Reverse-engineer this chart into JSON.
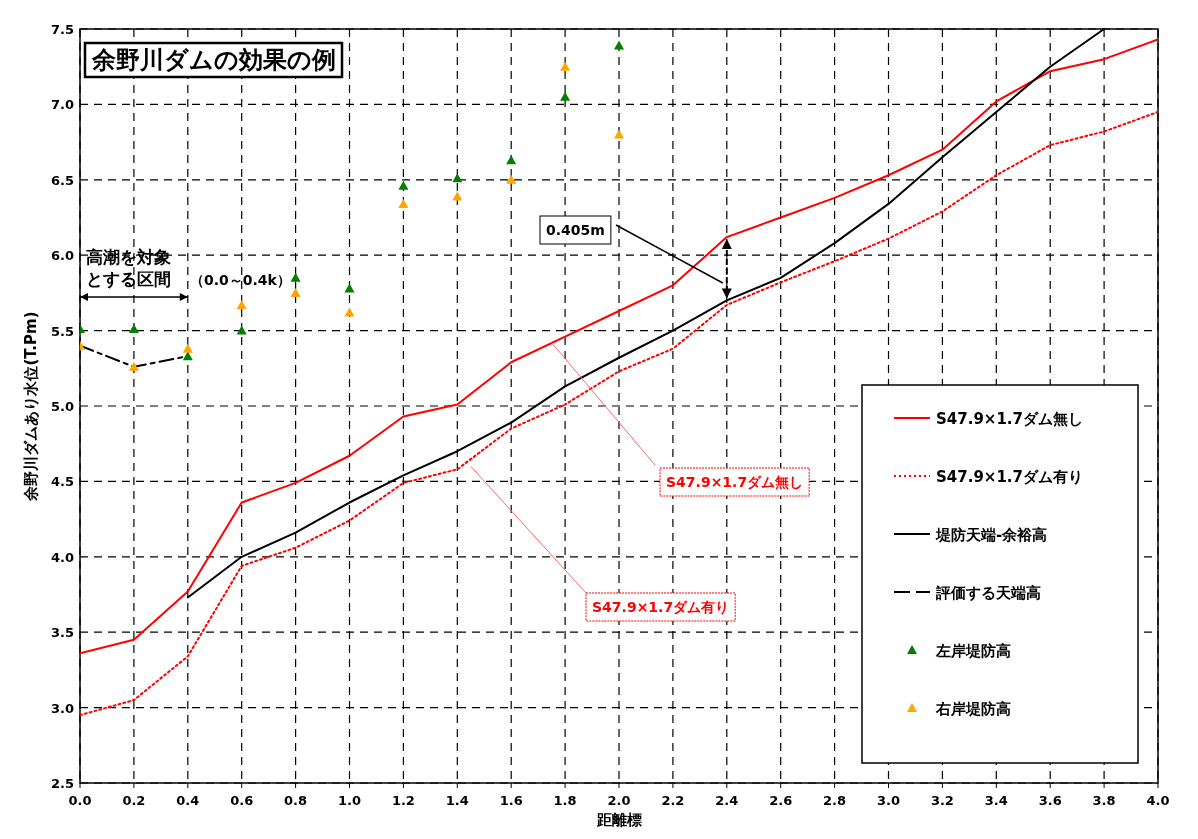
{
  "chart_data": {
    "type": "line",
    "title": "余野川ダムの効果の例",
    "xlabel": "距離標",
    "ylabel": "余野川ダムあり水位(T.Pm)",
    "xlim": [
      0,
      4
    ],
    "ylim": [
      2.5,
      7.5
    ],
    "xticks": [
      {
        "value": 0,
        "label": "0.0"
      },
      {
        "value": 0.2,
        "label": "0.2"
      },
      {
        "value": 0.4,
        "label": "0.4"
      },
      {
        "value": 0.6,
        "label": "0.6"
      },
      {
        "value": 0.8,
        "label": "0.8"
      },
      {
        "value": 1,
        "label": "1.0"
      },
      {
        "value": 1.2,
        "label": "1.2"
      },
      {
        "value": 1.4,
        "label": "1.4"
      },
      {
        "value": 1.6,
        "label": "1.6"
      },
      {
        "value": 1.8,
        "label": "1.8"
      },
      {
        "value": 2,
        "label": "2.0"
      },
      {
        "value": 2.2,
        "label": "2.2"
      },
      {
        "value": 2.4,
        "label": "2.4"
      },
      {
        "value": 2.6,
        "label": "2.6"
      },
      {
        "value": 2.8,
        "label": "2.8"
      },
      {
        "value": 3,
        "label": "3.0"
      },
      {
        "value": 3.2,
        "label": "3.2"
      },
      {
        "value": 3.4,
        "label": "3.4"
      },
      {
        "value": 3.6,
        "label": "3.6"
      },
      {
        "value": 3.8,
        "label": "3.8"
      },
      {
        "value": 4,
        "label": "4.0"
      }
    ],
    "yticks": [
      2.5,
      {
        "value": 3,
        "label": "3.0"
      },
      3.5,
      {
        "value": 4,
        "label": "4.0"
      },
      4.5,
      {
        "value": 5,
        "label": "5.0"
      },
      5.5,
      {
        "value": 6,
        "label": "6.0"
      },
      6.5,
      {
        "value": 7,
        "label": "7.0"
      },
      7.5
    ],
    "grid": true,
    "legend": "bottom right",
    "series": [
      {
        "name": "S47.9×1.7ダム無し",
        "color": "#ff0000",
        "line_style": "solid",
        "marker": "none",
        "x": [
          0,
          0.2,
          0.4,
          0.6,
          0.8,
          1,
          1.2,
          1.4,
          1.6,
          1.8,
          2,
          2.2,
          2.4,
          2.6,
          2.8,
          3,
          3.2,
          3.4,
          3.6,
          3.8,
          4
        ],
        "values": [
          3.36,
          3.45,
          3.77,
          4.36,
          4.49,
          4.67,
          4.93,
          5.01,
          5.29,
          5.46,
          5.63,
          5.8,
          6.12,
          6.25,
          6.38,
          6.53,
          6.7,
          7.02,
          7.22,
          7.3,
          7.43
        ]
      },
      {
        "name": "S47.9×1.7ダム有り",
        "color": "#ff0000",
        "line_style": "dotted",
        "marker": "none",
        "x": [
          0,
          0.2,
          0.4,
          0.6,
          0.8,
          1,
          1.2,
          1.4,
          1.6,
          1.8,
          2,
          2.2,
          2.4,
          2.6,
          2.8,
          3,
          3.2,
          3.4,
          3.6,
          3.8,
          4
        ],
        "values": [
          2.95,
          3.05,
          3.34,
          3.94,
          4.06,
          4.24,
          4.49,
          4.58,
          4.85,
          5.01,
          5.23,
          5.38,
          5.67,
          5.82,
          5.96,
          6.11,
          6.29,
          6.53,
          6.73,
          6.82,
          6.95
        ]
      },
      {
        "name": "堤防天端-余裕高",
        "color": "#000000",
        "line_style": "solid",
        "marker": "none",
        "x": [
          0.4,
          0.6,
          0.8,
          1,
          1.2,
          1.4,
          1.6,
          1.8,
          2,
          2.2,
          2.4,
          2.6,
          2.8,
          3,
          3.2,
          3.4,
          3.6,
          3.8
        ],
        "values": [
          3.73,
          4.0,
          4.16,
          4.36,
          4.54,
          4.7,
          4.89,
          5.13,
          5.32,
          5.5,
          5.7,
          5.85,
          6.08,
          6.34,
          6.65,
          6.95,
          7.25,
          7.5
        ]
      },
      {
        "name": "評価する天端高",
        "color": "#000000",
        "line_style": "dashed",
        "marker": "none",
        "x": [
          0,
          0.2,
          0.4
        ],
        "values": [
          5.4,
          5.26,
          5.33
        ]
      },
      {
        "name": "左岸堤防高",
        "type": "scatter",
        "color": "#008000",
        "marker": "triangle",
        "x": [
          0,
          0.2,
          0.4,
          0.6,
          0.8,
          1,
          1.2,
          1.4,
          1.6,
          1.8,
          2
        ],
        "values": [
          5.51,
          5.51,
          5.33,
          5.5,
          5.85,
          5.78,
          6.46,
          6.51,
          6.63,
          7.05,
          7.39
        ]
      },
      {
        "name": "右岸堤防高",
        "type": "scatter",
        "color": "#ffa500",
        "marker": "triangle",
        "x": [
          0,
          0.2,
          0.4,
          0.6,
          0.8,
          1,
          1.2,
          1.4,
          1.6,
          1.8,
          2
        ],
        "values": [
          5.4,
          5.26,
          5.38,
          5.67,
          5.75,
          5.62,
          6.34,
          6.39,
          6.5,
          7.25,
          6.8
        ]
      }
    ],
    "annotations": [
      "高潮を対象",
      "とする区間",
      "（0.0～0.4k）",
      "0.405m",
      {
        "text": "S47.9×1.7ダム無し",
        "x": 1.75,
        "y": 5.42
      },
      {
        "text": "S47.9×1.7ダム有り",
        "x": 1.45,
        "y": 4.6
      }
    ]
  }
}
